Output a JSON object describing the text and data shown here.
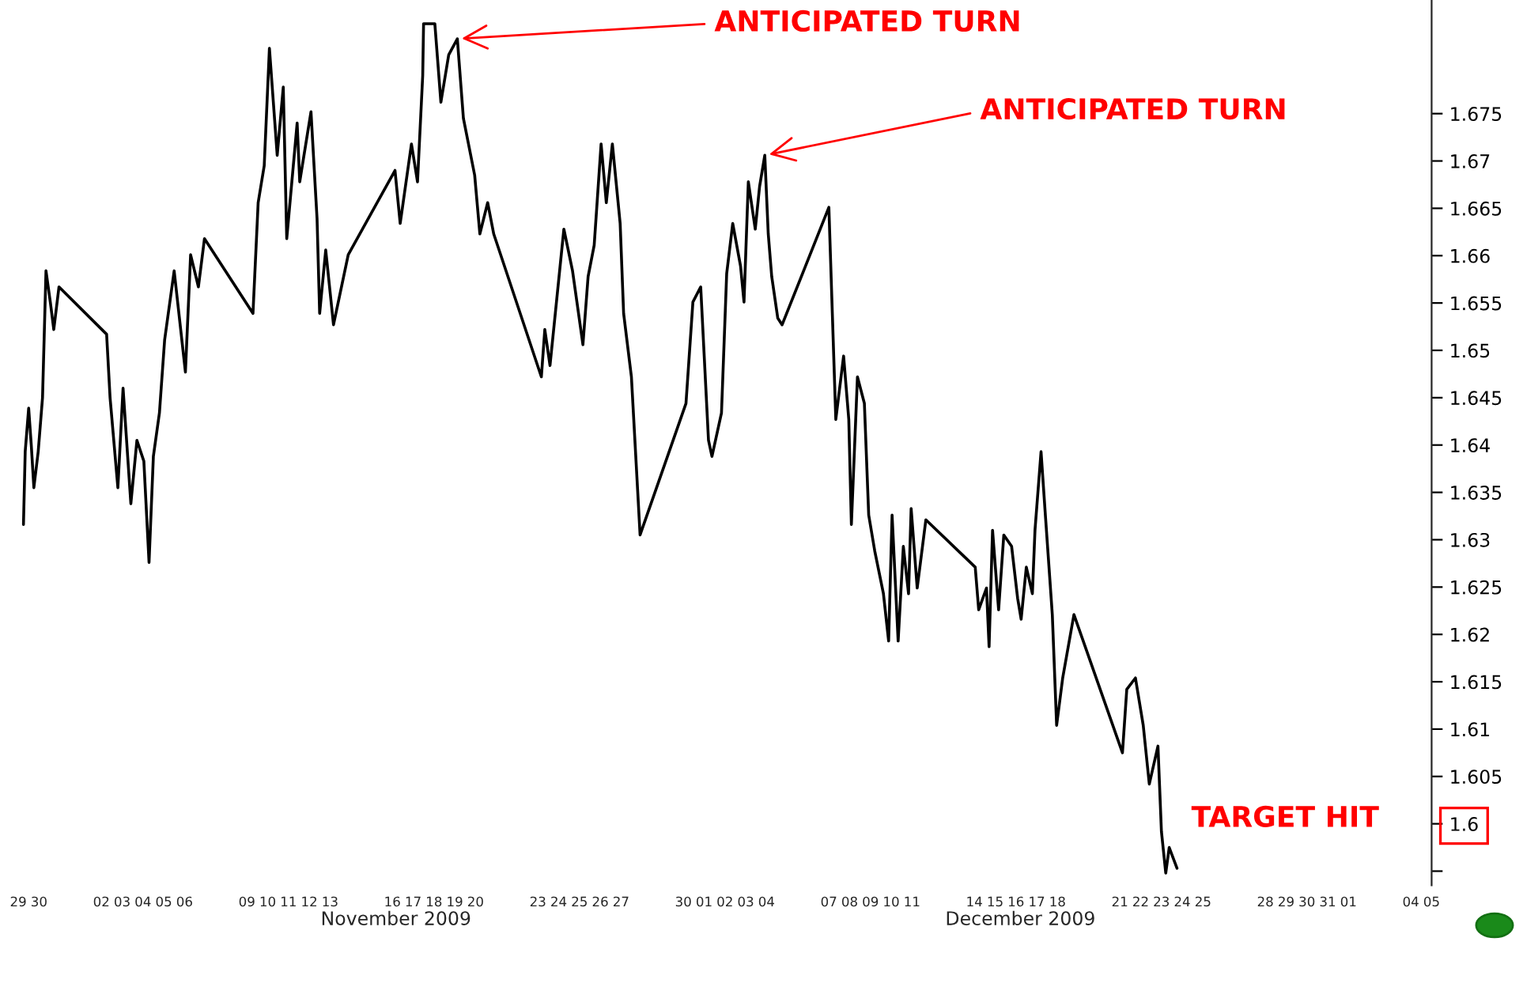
{
  "chart_data": {
    "type": "line",
    "annotations": [
      {
        "text": "ANTICIPATED TURN",
        "x": "2009-11-19T03:00",
        "y": 1.6829
      },
      {
        "text": "ANTICIPATED TURN",
        "x": "2009-12-03T22:00",
        "y": 1.6706
      },
      "TARGET HIT",
      "November 2009",
      "December 2009"
    ],
    "xlim": [
      "2009-10-29",
      "2010-01-05"
    ],
    "xticks": [
      {
        "value": "2009-10-29",
        "label": "29"
      },
      {
        "value": "2009-10-30",
        "label": "30"
      },
      {
        "value": "2009-11-02",
        "label": "02"
      },
      {
        "value": "2009-11-03",
        "label": "03"
      },
      {
        "value": "2009-11-04",
        "label": "04"
      },
      {
        "value": "2009-11-05",
        "label": "05"
      },
      {
        "value": "2009-11-06",
        "label": "06"
      },
      {
        "value": "2009-11-09",
        "label": "09"
      },
      {
        "value": "2009-11-10",
        "label": "10"
      },
      {
        "value": "2009-11-11",
        "label": "11"
      },
      {
        "value": "2009-11-12",
        "label": "12"
      },
      {
        "value": "2009-11-13",
        "label": "13"
      },
      {
        "value": "2009-11-16",
        "label": "16"
      },
      {
        "value": "2009-11-17",
        "label": "17"
      },
      {
        "value": "2009-11-18",
        "label": "18"
      },
      {
        "value": "2009-11-19",
        "label": "19"
      },
      {
        "value": "2009-11-20",
        "label": "20"
      },
      {
        "value": "2009-11-23",
        "label": "23"
      },
      {
        "value": "2009-11-24",
        "label": "24"
      },
      {
        "value": "2009-11-25",
        "label": "25"
      },
      {
        "value": "2009-11-26",
        "label": "26"
      },
      {
        "value": "2009-11-27",
        "label": "27"
      },
      {
        "value": "2009-11-30",
        "label": "30"
      },
      {
        "value": "2009-12-01",
        "label": "01"
      },
      {
        "value": "2009-12-02",
        "label": "02"
      },
      {
        "value": "2009-12-03",
        "label": "03"
      },
      {
        "value": "2009-12-04",
        "label": "04"
      },
      {
        "value": "2009-12-07",
        "label": "07"
      },
      {
        "value": "2009-12-08",
        "label": "08"
      },
      {
        "value": "2009-12-09",
        "label": "09"
      },
      {
        "value": "2009-12-10",
        "label": "10"
      },
      {
        "value": "2009-12-11",
        "label": "11"
      },
      {
        "value": "2009-12-14",
        "label": "14"
      },
      {
        "value": "2009-12-15",
        "label": "15"
      },
      {
        "value": "2009-12-16",
        "label": "16"
      },
      {
        "value": "2009-12-17",
        "label": "17"
      },
      {
        "value": "2009-12-18",
        "label": "18"
      },
      {
        "value": "2009-12-21",
        "label": "21"
      },
      {
        "value": "2009-12-22",
        "label": "22"
      },
      {
        "value": "2009-12-23",
        "label": "23"
      },
      {
        "value": "2009-12-24",
        "label": "24"
      },
      {
        "value": "2009-12-25",
        "label": "25"
      },
      {
        "value": "2009-12-28",
        "label": "28"
      },
      {
        "value": "2009-12-29",
        "label": "29"
      },
      {
        "value": "2009-12-30",
        "label": "30"
      },
      {
        "value": "2009-12-31",
        "label": "31"
      },
      {
        "value": "2010-01-01",
        "label": "01"
      },
      {
        "value": "2010-01-04",
        "label": "04"
      },
      {
        "value": "2010-01-05",
        "label": "05"
      }
    ],
    "ylim": [
      1.5935,
      1.687
    ],
    "yticks": [
      1.675,
      1.67,
      1.665,
      1.66,
      1.655,
      1.65,
      1.645,
      1.64,
      1.635,
      1.63,
      1.625,
      1.62,
      1.615,
      1.61,
      1.605,
      1.6,
      {
        "value": 1.595,
        "label": null
      }
    ],
    "grid": false,
    "marker": "none",
    "line_style": "solid",
    "series": [
      {
        "color": "#000000",
        "x": [
          "2009-10-29T06:00",
          "2009-10-29T08:00",
          "2009-10-29T12:00",
          "2009-10-29T15:00",
          "2009-10-29T18:00",
          "2009-10-29T23:00",
          "2009-10-30T04:00",
          "2009-10-30T08:00",
          "2009-10-30T13:00",
          "2009-10-30T17:00",
          "2009-10-30T23:00",
          "2009-11-02T06:00",
          "2009-11-02T10:00",
          "2009-11-02T19:00",
          "2009-11-03T01:00",
          "2009-11-03T10:00",
          "2009-11-03T17:00",
          "2009-11-04T01:00",
          "2009-11-04T07:00",
          "2009-11-04T12:00",
          "2009-11-04T19:00",
          "2009-11-05T01:00",
          "2009-11-05T12:00",
          "2009-11-06T01:00",
          "2009-11-06T07:00",
          "2009-11-06T16:00",
          "2009-11-06T23:00",
          "2009-11-09T07:00",
          "2009-11-09T13:00",
          "2009-11-09T20:00",
          "2009-11-10T02:00",
          "2009-11-10T11:00",
          "2009-11-10T18:00",
          "2009-11-10T22:00",
          "2009-11-11T10:00",
          "2009-11-11T13:00",
          "2009-11-12T02:00",
          "2009-11-12T09:00",
          "2009-11-12T12:00",
          "2009-11-12T19:00",
          "2009-11-13T04:00",
          "2009-11-13T21:00",
          "2009-11-16T03:00",
          "2009-11-16T09:00",
          "2009-11-16T22:00",
          "2009-11-17T05:00",
          "2009-11-17T11:00",
          "2009-11-17T12:00",
          "2009-11-18T01:00",
          "2009-11-18T08:00",
          "2009-11-18T17:00",
          "2009-11-19T03:00",
          "2009-11-19T10:00",
          "2009-11-19T23:00",
          "2009-11-20T05:00",
          "2009-11-20T14:00",
          "2009-11-20T21:00",
          "2009-11-23T04:00",
          "2009-11-23T08:00",
          "2009-11-23T14:00",
          "2009-11-24T06:00",
          "2009-11-24T16:00",
          "2009-11-25T04:00",
          "2009-11-25T10:00",
          "2009-11-25T17:00",
          "2009-11-26T01:00",
          "2009-11-26T07:00",
          "2009-11-26T14:00",
          "2009-11-26T23:00",
          "2009-11-27T03:00",
          "2009-11-27T12:00",
          "2009-11-27T22:00",
          "2009-11-30T03:00",
          "2009-11-30T11:00",
          "2009-11-30T20:00",
          "2009-12-01T05:00",
          "2009-12-01T09:00",
          "2009-12-01T20:00",
          "2009-12-02T02:00",
          "2009-12-02T09:00",
          "2009-12-02T18:00",
          "2009-12-02T22:00",
          "2009-12-03T03:00",
          "2009-12-03T11:00",
          "2009-12-03T16:00",
          "2009-12-03T22:00",
          "2009-12-04T02:00",
          "2009-12-04T06:00",
          "2009-12-04T13:00",
          "2009-12-04T18:00",
          "2009-12-07T00:00",
          "2009-12-07T04:00",
          "2009-12-07T08:00",
          "2009-12-07T17:00",
          "2009-12-07T23:00",
          "2009-12-08T02:00",
          "2009-12-08T09:00",
          "2009-12-08T17:00",
          "2009-12-08T22:00",
          "2009-12-09T05:00",
          "2009-12-09T15:00",
          "2009-12-09T21:00",
          "2009-12-10T01:00",
          "2009-12-10T08:00",
          "2009-12-10T14:00",
          "2009-12-10T20:00",
          "2009-12-10T23:00",
          "2009-12-11T06:00",
          "2009-12-11T16:00",
          "2009-12-14T01:00",
          "2009-12-14T05:00",
          "2009-12-14T14:00",
          "2009-12-14T17:00",
          "2009-12-14T21:00",
          "2009-12-15T04:00",
          "2009-12-15T10:00",
          "2009-12-15T19:00",
          "2009-12-16T02:00",
          "2009-12-16T06:00",
          "2009-12-16T12:00",
          "2009-12-16T19:00",
          "2009-12-16T22:00",
          "2009-12-17T05:00",
          "2009-12-17T10:00",
          "2009-12-17T18:00",
          "2009-12-17T23:00",
          "2009-12-18T06:00",
          "2009-12-18T19:00",
          "2009-12-21T03:00",
          "2009-12-21T08:00",
          "2009-12-21T18:00",
          "2009-12-22T03:00",
          "2009-12-22T10:00",
          "2009-12-22T20:00",
          "2009-12-23T00:00",
          "2009-12-23T05:00",
          "2009-12-23T09:00",
          "2009-12-23T18:00"
        ],
        "values": [
          1.6316,
          1.6393,
          1.6439,
          1.64,
          1.6355,
          1.6393,
          1.645,
          1.6584,
          1.6551,
          1.6522,
          1.6567,
          1.6517,
          1.645,
          1.6355,
          1.646,
          1.6338,
          1.6405,
          1.6383,
          1.6276,
          1.6388,
          1.6434,
          1.6511,
          1.6584,
          1.6477,
          1.6601,
          1.6567,
          1.6618,
          1.6539,
          1.6656,
          1.6695,
          1.6819,
          1.6706,
          1.6778,
          1.6618,
          1.674,
          1.6678,
          1.6752,
          1.6639,
          1.6539,
          1.6606,
          1.6527,
          1.6601,
          1.669,
          1.6634,
          1.6718,
          1.6678,
          1.679,
          1.6845,
          1.6845,
          1.6762,
          1.6812,
          1.6829,
          1.6745,
          1.6685,
          1.6623,
          1.6656,
          1.6623,
          1.6472,
          1.6522,
          1.6484,
          1.6628,
          1.6584,
          1.6506,
          1.6578,
          1.6611,
          1.6718,
          1.6656,
          1.6718,
          1.6634,
          1.6539,
          1.6472,
          1.6305,
          1.6444,
          1.6551,
          1.6567,
          1.6405,
          1.6388,
          1.6434,
          1.6581,
          1.6634,
          1.6589,
          1.6551,
          1.6678,
          1.6628,
          1.6673,
          1.6706,
          1.6623,
          1.6578,
          1.6534,
          1.6527,
          1.6651,
          1.6539,
          1.6427,
          1.6494,
          1.6427,
          1.6316,
          1.6472,
          1.6444,
          1.6326,
          1.6288,
          1.6243,
          1.6193,
          1.6326,
          1.6193,
          1.6293,
          1.6243,
          1.6333,
          1.6249,
          1.6321,
          1.6271,
          1.6226,
          1.6249,
          1.6187,
          1.631,
          1.6226,
          1.6305,
          1.6293,
          1.6238,
          1.6216,
          1.6271,
          1.6243,
          1.631,
          1.6393,
          1.6326,
          1.6221,
          1.6104,
          1.6154,
          1.6221,
          1.6075,
          1.6142,
          1.6154,
          1.6104,
          1.6042,
          1.6082,
          1.5992,
          1.5948,
          1.5975,
          1.5953
        ]
      }
    ]
  }
}
